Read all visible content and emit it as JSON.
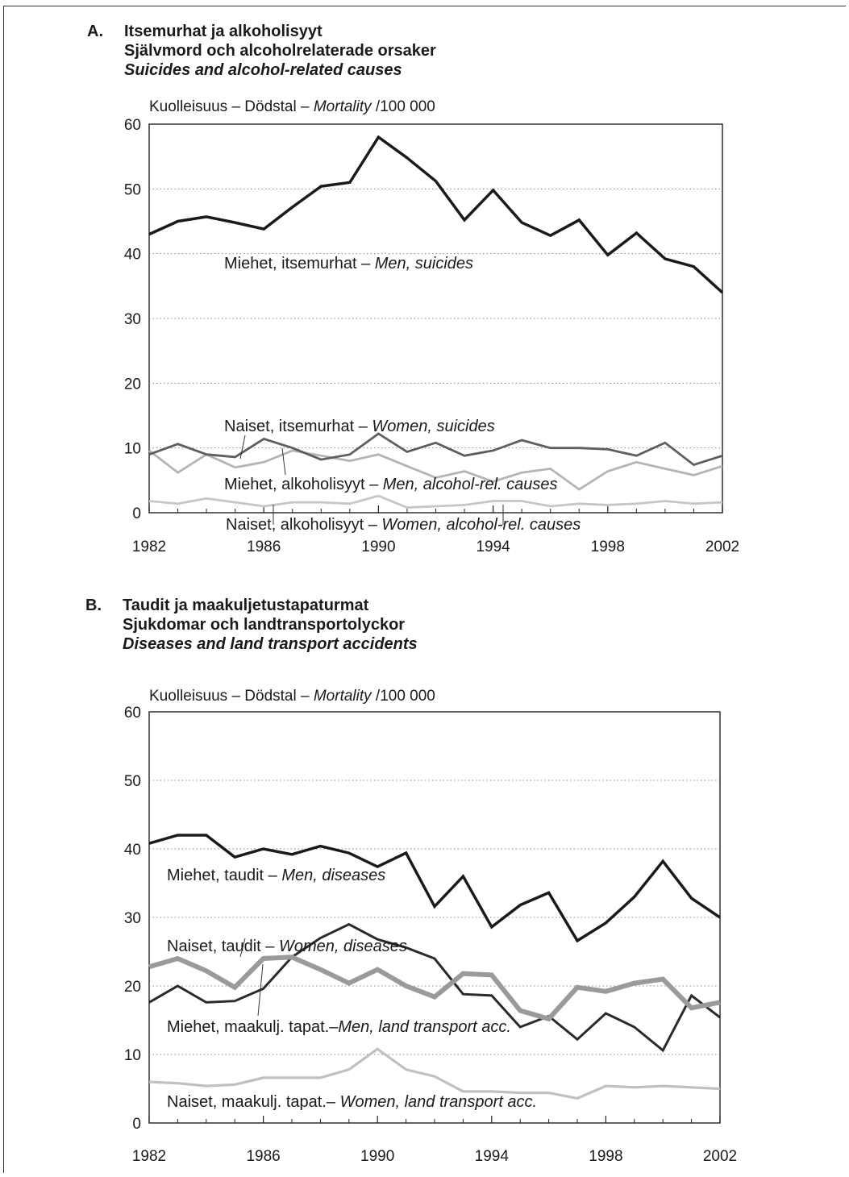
{
  "chart_data": [
    {
      "id": "A",
      "type": "line",
      "letter": "A.",
      "title_fi": "Itsemurhat ja alkoholisyyt",
      "title_sv": "Självmord och alcoholrelaterade orsaker",
      "title_en": "Suicides and alcohol-related causes",
      "ylabel_prefix": "Kuolleisuus – Dödstal – ",
      "ylabel_italic": "Mortality",
      "ylabel_suffix": " /100 000",
      "ylim": [
        0,
        60
      ],
      "yticks": [
        "0",
        "10",
        "20",
        "30",
        "40",
        "50",
        "60"
      ],
      "xlim": [
        1982,
        2002
      ],
      "xticks": [
        "1982",
        "1986",
        "1990",
        "1994",
        "1998",
        "2002"
      ],
      "grid": true,
      "x": [
        1982,
        1983,
        1984,
        1985,
        1986,
        1987,
        1988,
        1989,
        1990,
        1991,
        1992,
        1993,
        1994,
        1995,
        1996,
        1997,
        1998,
        1999,
        2000,
        2001,
        2002
      ],
      "series": [
        {
          "name_fi": "Miehet, itsemurhat – ",
          "name_en": "Men, suicides",
          "color": "#1a1a1a",
          "width": 3.5,
          "values": [
            43,
            45,
            45.7,
            44.8,
            43.8,
            47.2,
            50.4,
            51,
            58,
            54.8,
            51.2,
            45.2,
            49.8,
            44.8,
            42.8,
            45.2,
            39.8,
            43.2,
            39.2,
            38,
            34
          ]
        },
        {
          "name_fi": "Naiset, itsemurhat – ",
          "name_en": "Women, suicides",
          "color": "#5e5e5e",
          "width": 2.8,
          "values": [
            9,
            10.6,
            9,
            8.6,
            11.4,
            10,
            8.2,
            9,
            12.2,
            9.4,
            10.8,
            8.8,
            9.6,
            11.2,
            10,
            10,
            9.8,
            8.8,
            10.8,
            7.4,
            8.8
          ]
        },
        {
          "name_fi": "Miehet, alkoholisyyt – ",
          "name_en": "Men, alcohol-rel. causes",
          "color": "#b4b4b4",
          "width": 2.8,
          "values": [
            9.6,
            6.2,
            9,
            7,
            7.8,
            9.6,
            8.8,
            8,
            9,
            7.2,
            5.4,
            6.4,
            4.8,
            6.2,
            6.8,
            3.6,
            6.4,
            7.8,
            6.8,
            5.8,
            7.2
          ]
        },
        {
          "name_fi": "Naiset, alkoholisyyt – ",
          "name_en": "Women, alcohol-rel. causes",
          "color": "#c6c6c6",
          "width": 2.8,
          "values": [
            1.8,
            1.4,
            2.2,
            1.6,
            1,
            1.6,
            1.6,
            1.4,
            2.6,
            0.8,
            1,
            1.2,
            1.8,
            1.8,
            1,
            1.4,
            1.2,
            1.4,
            1.8,
            1.4,
            1.6
          ]
        }
      ]
    },
    {
      "id": "B",
      "type": "line",
      "letter": "B.",
      "title_fi": "Taudit ja maakuljetustapaturmat",
      "title_sv": "Sjukdomar och landtransportolyckor",
      "title_en": "Diseases and land transport accidents",
      "ylabel_prefix": "Kuolleisuus – Dödstal – ",
      "ylabel_italic": "Mortality",
      "ylabel_suffix": " /100 000",
      "ylim": [
        0,
        60
      ],
      "yticks": [
        "0",
        "10",
        "20",
        "30",
        "40",
        "50",
        "60"
      ],
      "xlim": [
        1982,
        2002
      ],
      "xticks": [
        "1982",
        "1986",
        "1990",
        "1994",
        "1998",
        "2002"
      ],
      "grid": true,
      "x": [
        1982,
        1983,
        1984,
        1985,
        1986,
        1987,
        1988,
        1989,
        1990,
        1991,
        1992,
        1993,
        1994,
        1995,
        1996,
        1997,
        1998,
        1999,
        2000,
        2001,
        2002
      ],
      "series": [
        {
          "name_fi": "Miehet, taudit – ",
          "name_en": "Men, diseases",
          "color": "#1a1a1a",
          "width": 3.5,
          "values": [
            40.8,
            42,
            42,
            38.8,
            40,
            39.2,
            40.4,
            39.4,
            37.4,
            39.4,
            31.6,
            36,
            28.6,
            31.8,
            33.6,
            26.6,
            29.2,
            33,
            38.2,
            32.8,
            30
          ]
        },
        {
          "name_fi": "Naiset, taudit – ",
          "name_en": "Women, diseases",
          "color": "#9a9a9a",
          "width": 6,
          "values": [
            22.8,
            24,
            22.2,
            19.8,
            24,
            24.2,
            22.4,
            20.4,
            22.4,
            20,
            18.4,
            21.8,
            21.6,
            16.4,
            15.2,
            19.8,
            19.2,
            20.4,
            21,
            16.8,
            17.6
          ]
        },
        {
          "name_fi": "Miehet, maakulj. tapat.–",
          "name_en": "Men, land transport acc.",
          "color": "#2a2a2a",
          "width": 3,
          "values": [
            17.6,
            20,
            17.6,
            17.8,
            19.6,
            24.2,
            27,
            29,
            26.8,
            25.6,
            24,
            18.8,
            18.6,
            14,
            15.6,
            12.2,
            16,
            14,
            10.6,
            18.6,
            15.4
          ]
        },
        {
          "name_fi": "Naiset, maakulj. tapat.– ",
          "name_en": "Women, land transport acc.",
          "color": "#c0c0c0",
          "width": 3.2,
          "values": [
            6,
            5.8,
            5.4,
            5.6,
            6.6,
            6.6,
            6.6,
            7.8,
            10.8,
            7.8,
            6.8,
            4.6,
            4.6,
            4.4,
            4.4,
            3.6,
            5.4,
            5.2,
            5.4,
            5.2,
            5
          ]
        }
      ]
    }
  ]
}
